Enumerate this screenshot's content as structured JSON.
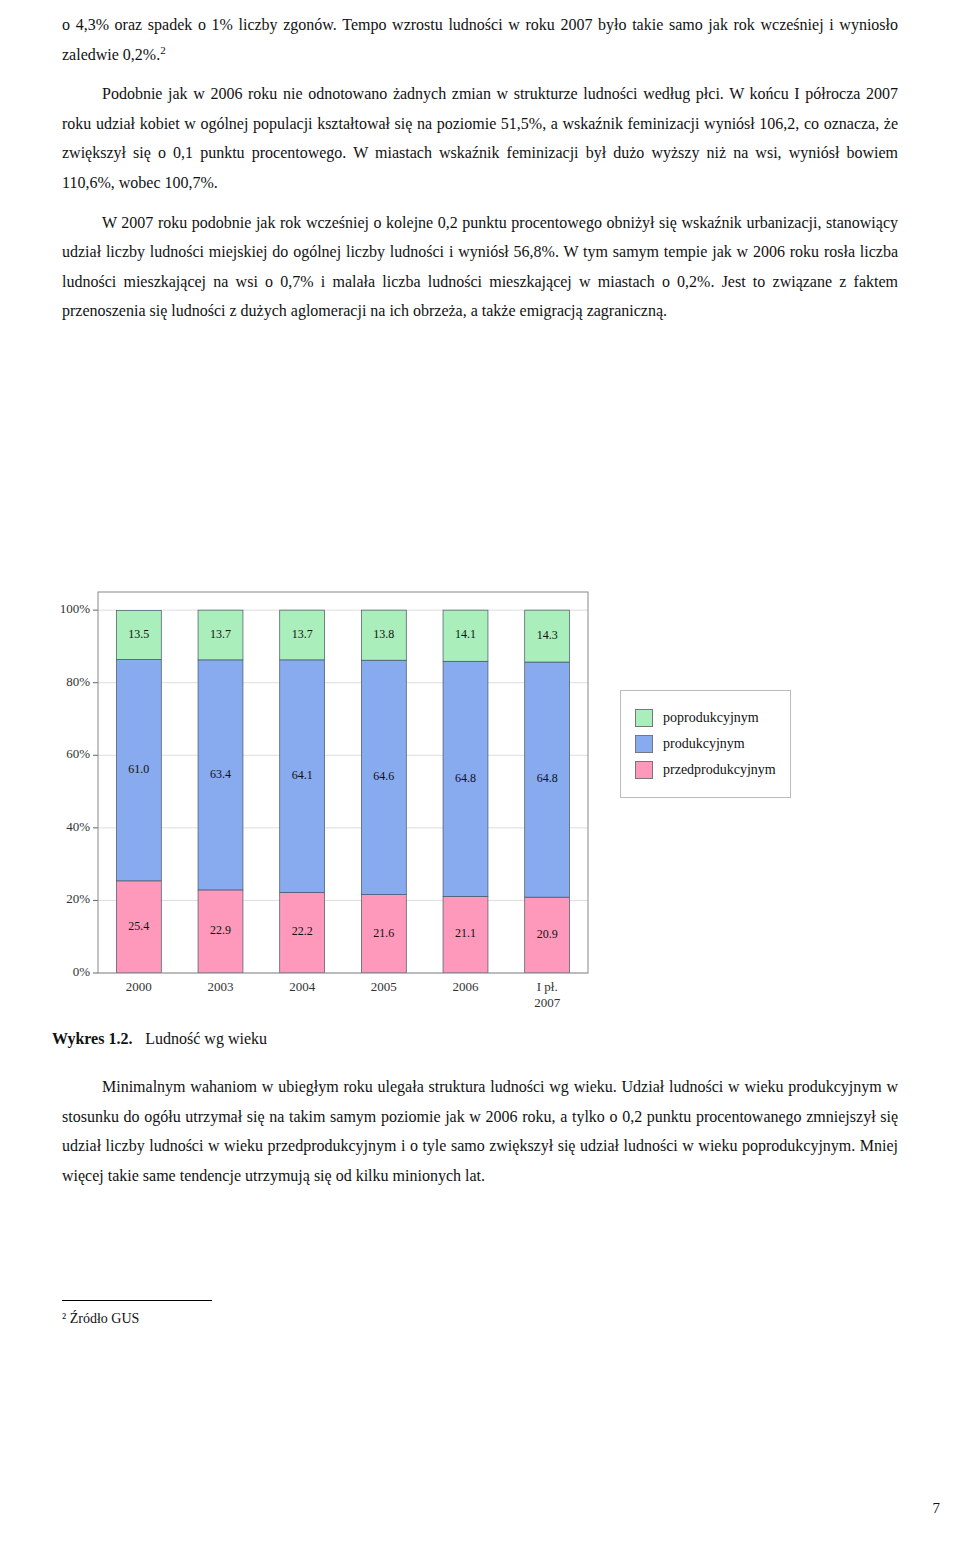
{
  "chart_data": {
    "type": "bar",
    "stacked": true,
    "title": "Ludność wg wieku",
    "categories": [
      "2000",
      "2003",
      "2004",
      "2005",
      "2006",
      "I pł.\n2007"
    ],
    "series": [
      {
        "name": "przedprodukcyjnym",
        "color": "#FF99BB",
        "values": [
          25.4,
          22.9,
          22.2,
          21.6,
          21.1,
          20.9
        ],
        "value_labels": [
          "25.4",
          "22.9",
          "22.2",
          "21.6",
          "21.1",
          "20.9"
        ]
      },
      {
        "name": "produkcyjnym",
        "color": "#88AAEE",
        "values": [
          61.0,
          63.4,
          64.1,
          64.6,
          64.8,
          64.8
        ],
        "value_labels": [
          "61.0",
          "63.4",
          "64.1",
          "64.6",
          "64.8",
          "64.8"
        ]
      },
      {
        "name": "poprodukcyjnym",
        "color": "#AAEEBB",
        "values": [
          13.5,
          13.7,
          13.7,
          13.8,
          14.1,
          14.3
        ],
        "value_labels": [
          "13.5",
          "13.7",
          "13.7",
          "13.8",
          "14.1",
          "14.3"
        ]
      }
    ],
    "ylim": [
      0,
      105
    ],
    "yticks": [
      {
        "value": 0,
        "label": "0%"
      },
      {
        "value": 20,
        "label": "20%"
      },
      {
        "value": 40,
        "label": "40%"
      },
      {
        "value": 60,
        "label": "60%"
      },
      {
        "value": 80,
        "label": "80%"
      },
      {
        "value": 100,
        "label": "100%"
      }
    ],
    "grid": true,
    "legend": "right",
    "data_labels": true
  },
  "caption_number": "Wykres 1.2.",
  "paragraphs_above": [
    {
      "text": "o 4,3% oraz spadek o 1% liczby zgonów. Tempo wzrostu ludności w roku 2007 było takie samo jak rok wcześniej i wyniosło zaledwie 0,2%.",
      "superscript": "2"
    },
    {
      "text": "Podobnie jak w 2006 roku nie odnotowano żadnych zmian w strukturze ludności według płci. W końcu I półrocza 2007 roku udział kobiet w ogólnej populacji kształtował się na poziomie 51,5%, a wskaźnik feminizacji wyniósł 106,2, co oznacza, że zwiększył się o 0,1 punktu procentowego. W miastach wskaźnik feminizacji był dużo wyższy niż na wsi, wyniósł bowiem 110,6%, wobec 100,7%."
    },
    {
      "text": "W 2007 roku podobnie jak rok wcześniej o kolejne 0,2 punktu procentowego obniżył się wskaźnik urbanizacji, stanowiący udział liczby ludności miejskiej do ogólnej liczby ludności i wyniósł 56,8%. W tym samym tempie jak w 2006 roku rosła liczba ludności mieszkającej na wsi o 0,7% i malała liczba ludności mieszkającej w miastach o 0,2%. Jest to związane z faktem przenoszenia się ludności z dużych aglomeracji na ich obrzeża, a także emigracją zagraniczną."
    }
  ],
  "paragraphs_below": [
    {
      "text": "Minimalnym wahaniom w ubiegłym roku ulegała struktura ludności wg wieku. Udział ludności w wieku produkcyjnym w stosunku do ogółu utrzymał się na takim samym poziomie jak w 2006 roku, a tylko o 0,2 punktu procentowanego zmniejszył się udział liczby ludności w wieku przedprodukcyjnym i o tyle samo zwiększył się udział ludności w wieku poprodukcyjnym. Mniej więcej takie same tendencje utrzymują się od kilku minionych lat."
    }
  ],
  "footnote": "² Źródło GUS",
  "page_number": "7"
}
